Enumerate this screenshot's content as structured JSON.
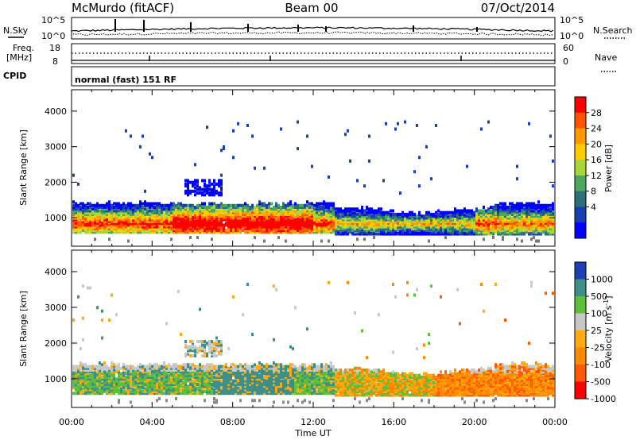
{
  "header": {
    "station": "McMurdo (fitACF)",
    "beam": "Beam 00",
    "date": "07/Oct/2014"
  },
  "nsky_panel": {
    "label": "N.Sky",
    "right_label": "N.Search",
    "left_ticks": [
      "10^5",
      "10^0"
    ],
    "right_ticks": [
      "10^5",
      "10^0"
    ]
  },
  "freq_panel": {
    "label_line1": "Freq.",
    "label_line2": "[MHz]",
    "left_ticks": [
      "18",
      "8"
    ],
    "right_ticks": [
      "60",
      "0"
    ],
    "right_label": "Nave"
  },
  "cpid_panel": {
    "label": "CPID",
    "mode_text": "normal (fast) 151 RF"
  },
  "power_colorbar": {
    "title": "Power [dB]",
    "ticks": [
      "28",
      "24",
      "20",
      "16",
      "12",
      "8",
      "4"
    ],
    "colors": [
      "#ff0000",
      "#ff5500",
      "#ff9900",
      "#ffcc00",
      "#a8d838",
      "#4aa860",
      "#2a6f7a",
      "#1a3fb0",
      "#0000ff"
    ]
  },
  "velocity_colorbar": {
    "title": "Velocity [m s",
    "superscript": "-1",
    "title_end": "]",
    "ticks": [
      "1000",
      "500",
      "100",
      "25",
      "-25",
      "-100",
      "-500",
      "-1000"
    ],
    "colors": [
      "#1f3fb4",
      "#3d8f88",
      "#5fbf3a",
      "#c8c8c8",
      "#ffaa10",
      "#ff8a00",
      "#ff5a00",
      "#ff0000"
    ]
  },
  "chart_data": [
    {
      "type": "heatmap",
      "name": "power",
      "ylabel": "Slant Range [km]",
      "xlim": [
        0,
        24
      ],
      "ylim": [
        200,
        4600
      ],
      "yticks": [
        "1000",
        "2000",
        "3000",
        "4000"
      ],
      "colorbar": "Power [dB]"
    },
    {
      "type": "heatmap",
      "name": "velocity",
      "ylabel": "Slant Range [km]",
      "xlim": [
        0,
        24
      ],
      "ylim": [
        200,
        4600
      ],
      "yticks": [
        "1000",
        "2000",
        "3000",
        "4000"
      ],
      "colorbar": "Velocity [m s-1]"
    }
  ],
  "x_axis": {
    "label": "Time UT",
    "ticks": [
      "00:00",
      "04:00",
      "08:00",
      "12:00",
      "16:00",
      "20:00",
      "00:00"
    ]
  }
}
